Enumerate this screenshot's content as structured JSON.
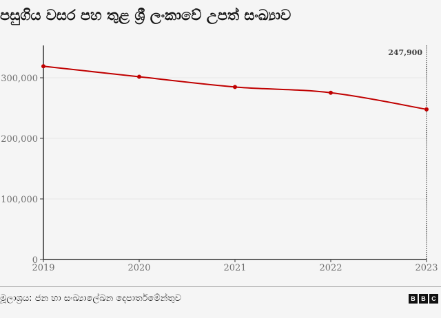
{
  "title": "පසුගිය වසර පහ තුළ ශ්‍රී ලංකාවේ උපත් සංඛ්‍යාව",
  "source": "මූලාශ්‍රය: ජන හා සංඛ්‍යාලේඛන දෙපාර්තමේන්තුව",
  "brand": {
    "letters": [
      "B",
      "B",
      "C"
    ]
  },
  "colors": {
    "line": "#c00000",
    "axis": "#333333",
    "grid": "#e6e6e6",
    "background": "#f5f5f5"
  },
  "chart_data": {
    "type": "line",
    "title": "පසුගිය වසර පහ තුළ ශ්‍රී ලංකාවේ උපත් සංඛ්‍යාව",
    "xlabel": "",
    "ylabel": "",
    "categories": [
      "2019",
      "2020",
      "2021",
      "2022",
      "2023"
    ],
    "series": [
      {
        "name": "Births",
        "values": [
          319000,
          301700,
          284800,
          275300,
          247900
        ]
      }
    ],
    "ylim": [
      0,
      350000
    ],
    "yticks": [
      0,
      100000,
      200000,
      300000
    ],
    "ytick_labels": [
      "0",
      "100,000",
      "200,000",
      "300,000"
    ],
    "grid": true,
    "legend": "none",
    "annotations": [
      {
        "x": "2023",
        "label": "247,900",
        "style": "dotted vertical line"
      }
    ]
  }
}
